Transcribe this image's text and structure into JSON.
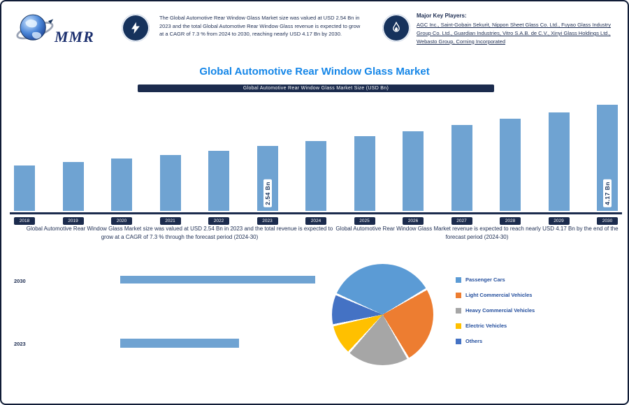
{
  "brand": {
    "logo_text": "MMR"
  },
  "header": {
    "highlight": {
      "icon": "lightning-icon",
      "text": "The Global Automotive Rear Window Glass Market size was valued at USD 2.54 Bn in 2023 and the total Global Automotive Rear Window Glass revenue is expected to grow at a CAGR of 7.3 % from 2024 to 2030, reaching nearly USD 4.17 Bn by 2030."
    },
    "players": {
      "icon": "flame-icon",
      "heading": "Major Key Players:",
      "text": "AGC Inc., Saint-Gobain Sekurit, Nippon Sheet Glass Co. Ltd., Fuyao Glass Industry Group Co. Ltd., Guardian Industries, Vitro S.A.B. de C.V., Xinyi Glass Holdings Ltd., Webasto Group, Corning Incorporated"
    }
  },
  "title": "Global Automotive Rear Window Glass Market",
  "chart_header": "Global Automotive Rear Window Glass Market Size (USD Bn)",
  "captions": {
    "left": "Global Automotive Rear Window Glass Market size was valued at USD 2.54 Bn in 2023 and the total revenue is expected to grow at a CAGR of 7.3 % through the forecast period (2024-30)",
    "right": "Global Automotive Rear Window Glass Market revenue is expected to reach nearly USD 4.17 Bn by the end of the forecast period (2024-30)"
  },
  "chart_data": [
    {
      "type": "bar",
      "title": "Global Automotive Rear Window Glass Market Size (USD Bn)",
      "categories": [
        "2018",
        "2019",
        "2020",
        "2021",
        "2022",
        "2023",
        "2024",
        "2025",
        "2026",
        "2027",
        "2028",
        "2029",
        "2030"
      ],
      "values": [
        1.78,
        1.91,
        2.05,
        2.2,
        2.37,
        2.54,
        2.73,
        2.93,
        3.14,
        3.37,
        3.62,
        3.88,
        4.17
      ],
      "bar_labels": {
        "2023": "2.54 Bn",
        "2030": "4.17 Bn"
      },
      "ylabel": "USD Bn",
      "ylim": [
        0,
        4.5
      ],
      "bar_color": "#6FA3D2"
    },
    {
      "type": "pie",
      "title": "Market Share by Vehicle Type",
      "labels": [
        "Passenger Cars",
        "Light Commercial Vehicles",
        "Heavy Commercial Vehicles",
        "Electric Vehicles",
        "Others"
      ],
      "values": [
        35,
        25,
        20,
        10,
        10
      ],
      "colors": [
        "#5B9BD5",
        "#ED7D31",
        "#A6A6A6",
        "#FFC000",
        "#4472C4"
      ],
      "legend_position": "right"
    },
    {
      "type": "bar",
      "orientation": "horizontal",
      "title": "Market Size Comparison (USD Bn)",
      "categories": [
        "2030",
        "2023"
      ],
      "values": [
        4.17,
        2.54
      ],
      "bar_color": "#6FA3D2"
    }
  ],
  "colors": {
    "navy": "#1B2B4D",
    "bar_blue": "#6FA3D2",
    "title_blue": "#1486E8"
  }
}
